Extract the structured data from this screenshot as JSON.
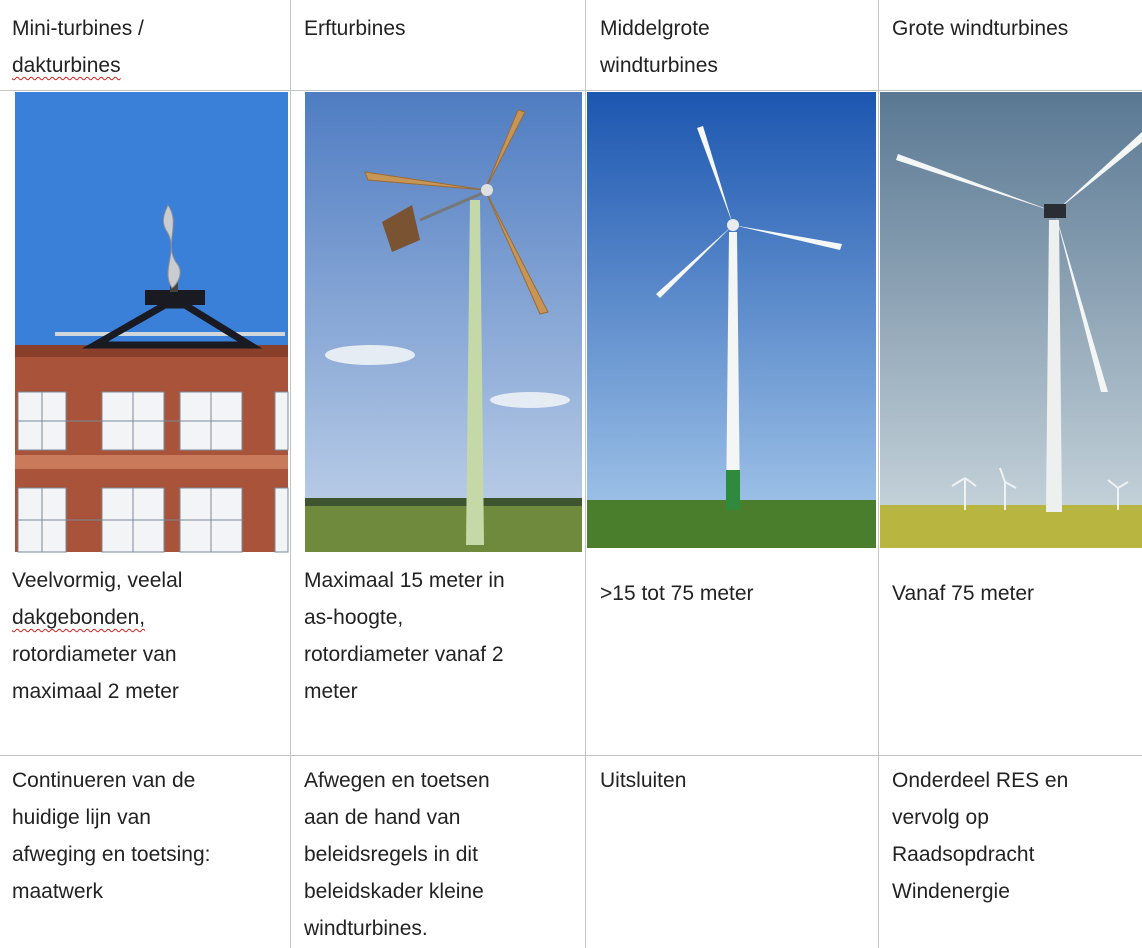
{
  "table": {
    "header": [
      [
        "Mini-turbines /",
        "dakturbines"
      ],
      [
        "Erfturbines"
      ],
      [
        "Middelgrote",
        "windturbines"
      ],
      [
        "Grote windturbines"
      ]
    ],
    "rows": [
      [
        [
          "Veelvormig, veelal",
          "dakgebonden,",
          "rotordiameter van",
          "maximaal 2 meter"
        ],
        [
          "Maximaal 15 meter in",
          "as-hoogte,",
          "rotordiameter vanaf 2",
          "meter"
        ],
        [
          ">15 tot 75 meter"
        ],
        [
          "Vanaf 75 meter"
        ]
      ],
      [
        [
          "Continueren van de",
          "huidige lijn van",
          "afweging en toetsing:",
          "maatwerk"
        ],
        [
          "Afwegen en toetsen",
          "aan de hand van",
          "beleidsregels in dit",
          "beleidskader kleine",
          "windturbines."
        ],
        [
          "Uitsluiten"
        ],
        [
          "Onderdeel RES en",
          "vervolg op",
          "Raadsopdracht",
          "Windenergie"
        ]
      ]
    ]
  }
}
